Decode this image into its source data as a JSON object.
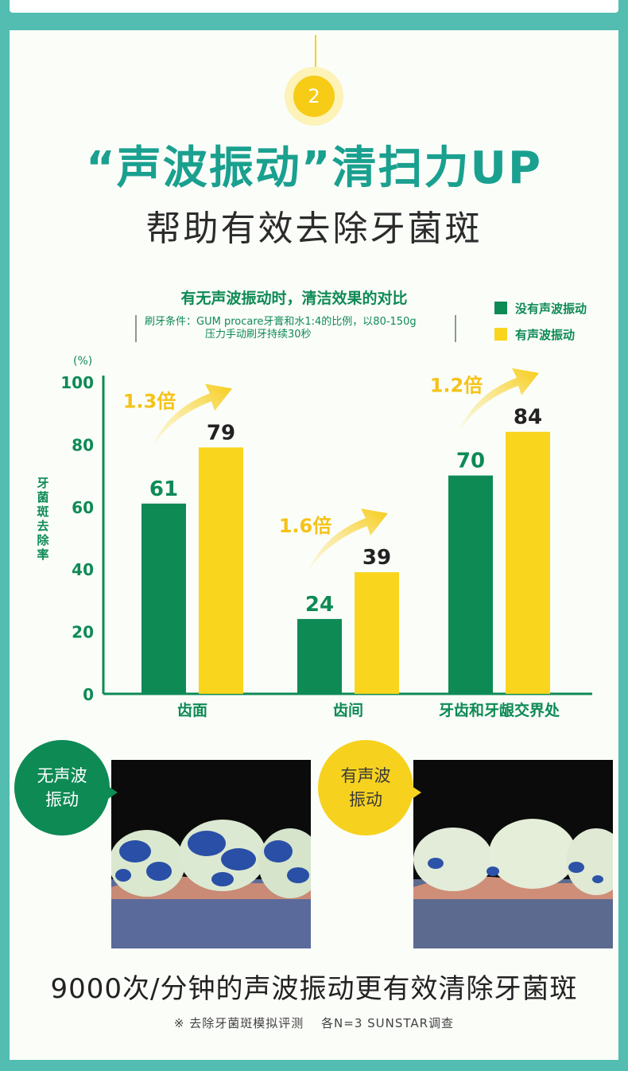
{
  "header": {
    "step_number": "2",
    "title_line1": "“声波振动”清扫力UP",
    "title_line2": "帮助有效去除牙菌斑"
  },
  "colors": {
    "no_sonic": "#0e8a55",
    "with_sonic": "#f9d51e",
    "teal": "#52bdb0",
    "title_teal": "#1aa08f"
  },
  "chart_data": {
    "type": "bar",
    "title": "有无声波振动时，清洁效果的对比",
    "conditions_line1": "刷牙条件：GUM procare牙膏和水1:4的比例，以80-150g",
    "conditions_line2": "压力手动刷牙持续30秒",
    "unit": "(%)",
    "ylabel": "牙菌斑去除率",
    "ylim": [
      0,
      100
    ],
    "yticks": [
      "0",
      "20",
      "40",
      "60",
      "80",
      "100"
    ],
    "categories": [
      "齿面",
      "齿间",
      "牙齿和牙龈交界处"
    ],
    "series": [
      {
        "name": "没有声波振动",
        "values": [
          61,
          24,
          70
        ]
      },
      {
        "name": "有声波振动",
        "values": [
          79,
          39,
          84
        ]
      }
    ],
    "ratios": [
      "1.3倍",
      "1.6倍",
      "1.2倍"
    ]
  },
  "photos": {
    "left_label": "无声波\n振动",
    "right_label": "有声波\n振动",
    "left_icon": "teeth-plaque-heavy-photo",
    "right_icon": "teeth-plaque-light-photo"
  },
  "footer": {
    "caption": "9000次/分钟的声波振动更有效清除牙菌斑",
    "note": "※ 去除牙菌斑模拟评测　 各N=3  SUNSTAR调查"
  }
}
